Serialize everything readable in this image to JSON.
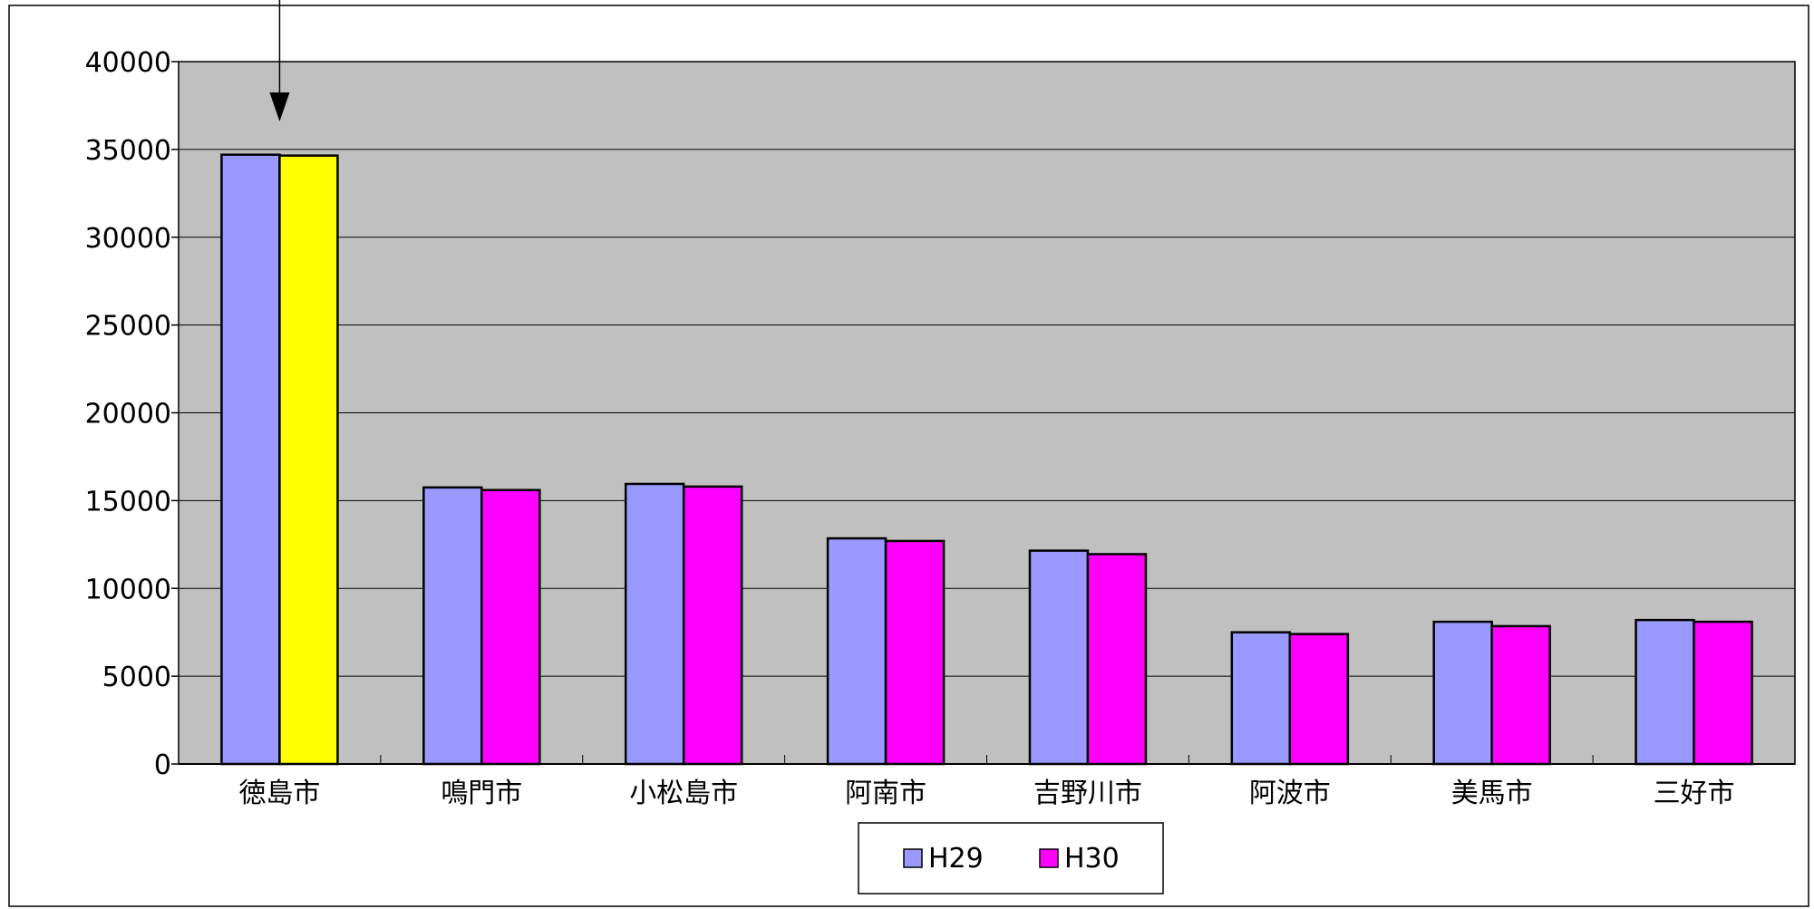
{
  "chart_data": {
    "type": "bar",
    "categories": [
      "徳島市",
      "鳴門市",
      "小松島市",
      "阿南市",
      "吉野川市",
      "阿波市",
      "美馬市",
      "三好市"
    ],
    "series": [
      {
        "name": "H29",
        "values": [
          34700,
          15750,
          15950,
          12850,
          12150,
          7500,
          8100,
          8200
        ],
        "color": "#9999ff"
      },
      {
        "name": "H30",
        "values": [
          34650,
          15600,
          15800,
          12700,
          11950,
          7400,
          7850,
          8100
        ],
        "color": "#ff00ff"
      }
    ],
    "highlight": {
      "category_index": 0,
      "series_index": 1,
      "color": "#ffff00"
    },
    "annotation": {
      "type": "arrow",
      "target_category_index": 0
    },
    "ylim": [
      0,
      40000
    ],
    "yticks": [
      "0",
      "5000",
      "10000",
      "15000",
      "20000",
      "25000",
      "30000",
      "35000",
      "40000"
    ],
    "grid": true,
    "plot_background": "#c0c0c0",
    "legend_placement": "bottom-center",
    "title": "",
    "xlabel": "",
    "ylabel": ""
  }
}
